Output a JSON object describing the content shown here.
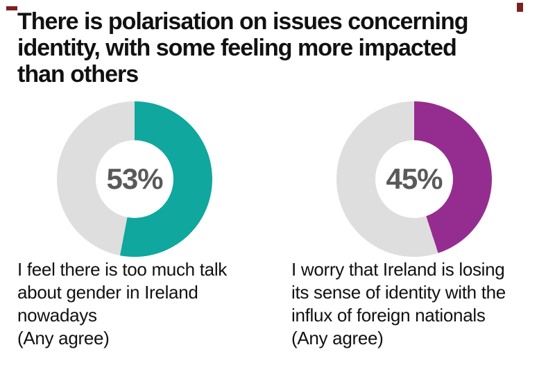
{
  "header": {
    "title": "There is polarisation on issues concerning identity, with some feeling more impacted than others",
    "title_lines": [
      "There is polarisation on issues concerning",
      "identity, with some feeling more impacted",
      "than others"
    ]
  },
  "colors": {
    "teal": "#0FA79E",
    "purple": "#952D90",
    "track_grey": "#DEDEDE",
    "pct_text": "#58595B",
    "title_text": "#111111",
    "corner_mark": "#7E1F1F"
  },
  "chart_data": [
    {
      "type": "pie",
      "subtype": "donut",
      "center_label": "53%",
      "caption": "I feel there is too much talk about gender in Ireland nowadays (Any agree)",
      "caption_lines": [
        "I feel there is too much talk",
        "about gender in Ireland",
        "nowadays",
        "(Any agree)"
      ],
      "start_angle_deg": 0,
      "direction": "clockwise",
      "slices": [
        {
          "label": "Any agree",
          "value": 53,
          "color": "#0FA79E"
        },
        {
          "label": "Remainder",
          "value": 47,
          "color": "#DEDEDE"
        }
      ]
    },
    {
      "type": "pie",
      "subtype": "donut",
      "center_label": "45%",
      "caption": "I worry that Ireland is losing its sense of identity with the influx of foreign nationals (Any agree)",
      "caption_lines": [
        "I worry that Ireland is losing",
        "its sense of identity with the",
        "influx of foreign nationals",
        "(Any agree)"
      ],
      "start_angle_deg": 0,
      "direction": "clockwise",
      "slices": [
        {
          "label": "Any agree",
          "value": 45,
          "color": "#952D90"
        },
        {
          "label": "Remainder",
          "value": 55,
          "color": "#DEDEDE"
        }
      ]
    }
  ]
}
